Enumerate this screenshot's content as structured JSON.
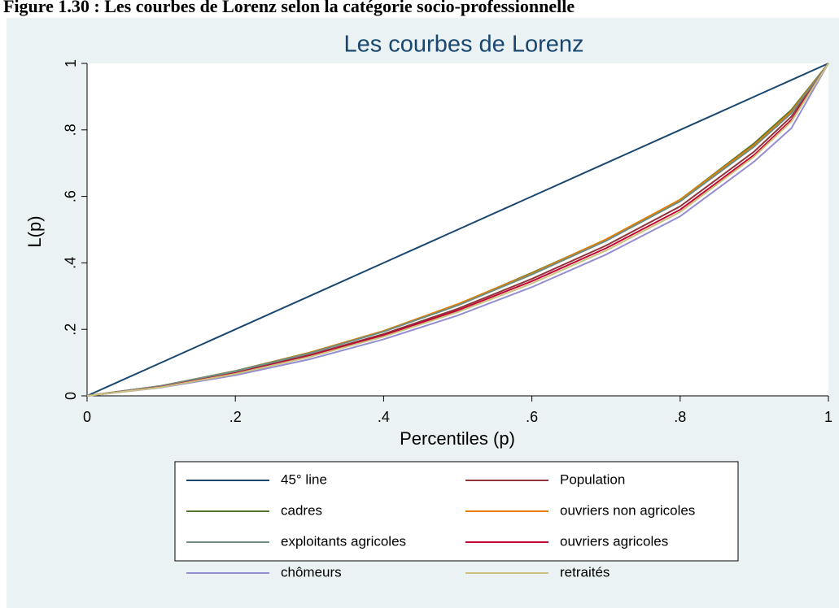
{
  "caption": "Figure 1.30 : Les courbes de Lorenz selon la catégorie socio-professionnelle",
  "chart_data": {
    "type": "line",
    "title": "Les courbes de Lorenz",
    "xlabel": "Percentiles (p)",
    "ylabel": "L(p)",
    "x": [
      0,
      0.1,
      0.2,
      0.3,
      0.4,
      0.5,
      0.6,
      0.7,
      0.8,
      0.9,
      0.95,
      1
    ],
    "xlim": [
      0,
      1
    ],
    "ylim": [
      0,
      1
    ],
    "xticks": [
      0,
      {
        "value": 0.2,
        "label": ".2"
      },
      {
        "value": 0.4,
        "label": ".4"
      },
      {
        "value": 0.6,
        "label": ".6"
      },
      {
        "value": 0.8,
        "label": ".8"
      },
      1
    ],
    "yticks": [
      0,
      {
        "value": 0.2,
        "label": ".2"
      },
      {
        "value": 0.4,
        "label": ".4"
      },
      {
        "value": 0.6,
        "label": ".6"
      },
      {
        "value": 0.8,
        "label": ".8"
      },
      1
    ],
    "legend": "bottom",
    "series": [
      {
        "name": "45° line",
        "color": "#1a476f",
        "values": [
          0,
          0.1,
          0.2,
          0.3,
          0.4,
          0.5,
          0.6,
          0.7,
          0.8,
          0.9,
          0.95,
          1
        ]
      },
      {
        "name": "Population",
        "color": "#90353b",
        "values": [
          0,
          0.028,
          0.07,
          0.123,
          0.186,
          0.262,
          0.352,
          0.452,
          0.57,
          0.735,
          0.84,
          1
        ]
      },
      {
        "name": "cadres",
        "color": "#55752f",
        "values": [
          0,
          0.03,
          0.075,
          0.13,
          0.195,
          0.275,
          0.37,
          0.47,
          0.59,
          0.76,
          0.86,
          1
        ]
      },
      {
        "name": "ouvriers non agricoles",
        "color": "#e37e00",
        "values": [
          0,
          0.03,
          0.074,
          0.13,
          0.195,
          0.276,
          0.368,
          0.471,
          0.59,
          0.755,
          0.855,
          1
        ]
      },
      {
        "name": "exploitants agricoles",
        "color": "#6e8e84",
        "values": [
          0,
          0.03,
          0.074,
          0.128,
          0.193,
          0.272,
          0.365,
          0.466,
          0.585,
          0.75,
          0.85,
          1
        ]
      },
      {
        "name": "ouvriers agricoles",
        "color": "#c10534",
        "values": [
          0,
          0.027,
          0.068,
          0.12,
          0.182,
          0.257,
          0.345,
          0.444,
          0.56,
          0.725,
          0.83,
          1
        ]
      },
      {
        "name": "chômeurs",
        "color": "#938dd2",
        "values": [
          0,
          0.025,
          0.062,
          0.11,
          0.17,
          0.242,
          0.327,
          0.425,
          0.54,
          0.705,
          0.805,
          1
        ]
      },
      {
        "name": "retraités",
        "color": "#cac27e",
        "values": [
          0,
          0.026,
          0.066,
          0.117,
          0.178,
          0.252,
          0.338,
          0.437,
          0.553,
          0.72,
          0.825,
          1
        ]
      }
    ]
  }
}
